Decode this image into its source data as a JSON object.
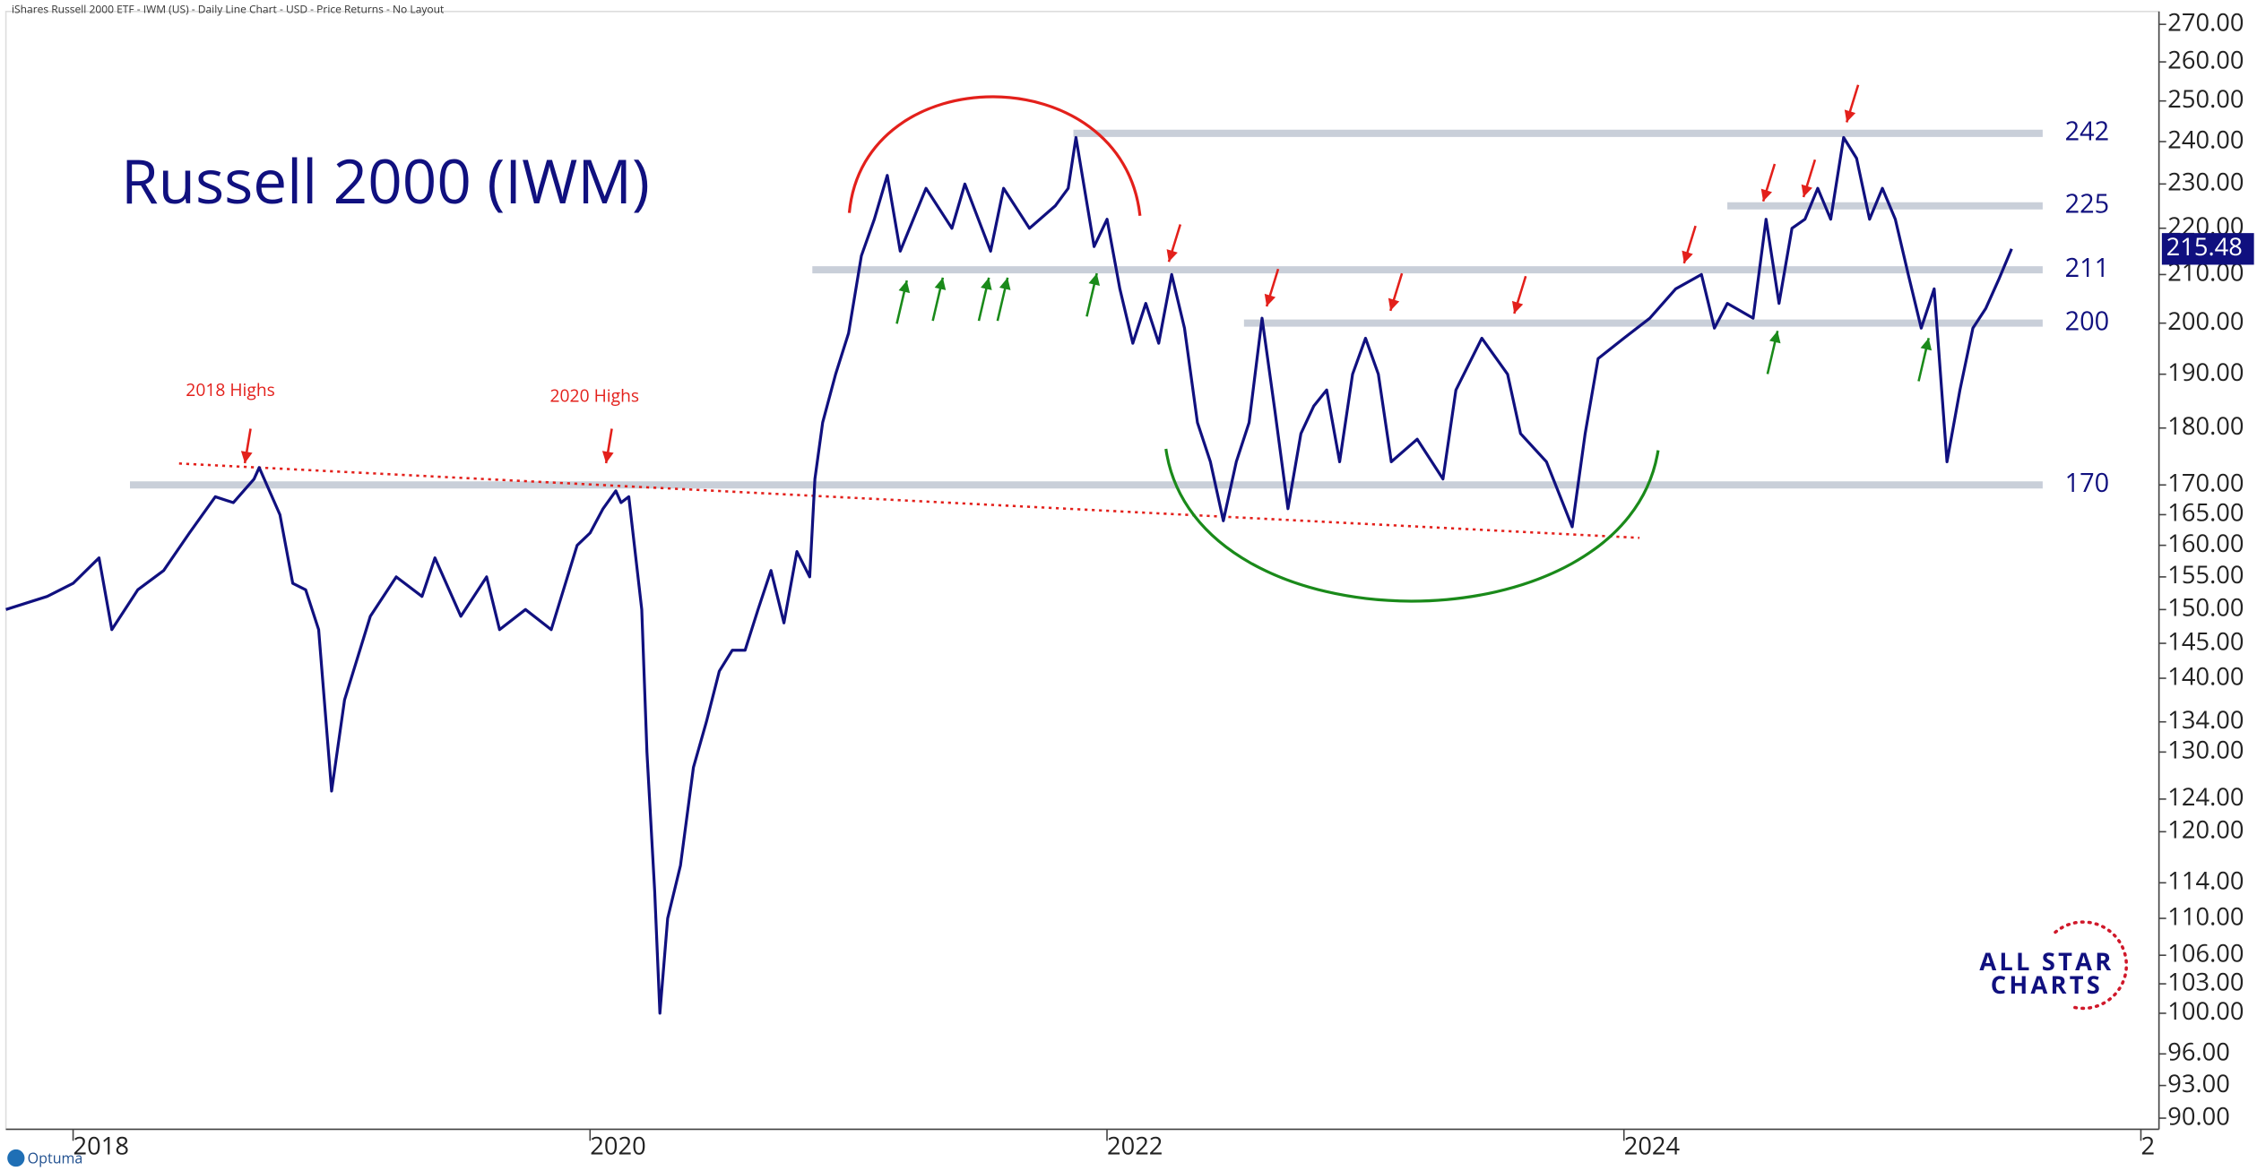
{
  "chart_data": {
    "type": "line",
    "header": "iShares Russell 2000 ETF - IWM (US) - Daily Line Chart - USD - Price Returns - No Layout",
    "title": "Russell 2000 (IWM)",
    "log_scale": true,
    "xlim": [
      2017.74,
      2026.07
    ],
    "xticks": [
      2018,
      2020,
      2022,
      2024,
      {
        "value": 2026,
        "label": "2"
      }
    ],
    "ylim": [
      89,
      273.5
    ],
    "yticks": [
      {
        "value": 270,
        "label": "270.00"
      },
      {
        "value": 260,
        "label": "260.00"
      },
      {
        "value": 250,
        "label": "250.00"
      },
      {
        "value": 240,
        "label": "240.00"
      },
      {
        "value": 230,
        "label": "230.00"
      },
      {
        "value": 220,
        "label": "220.00"
      },
      {
        "value": 210,
        "label": "210.00"
      },
      {
        "value": 200,
        "label": "200.00"
      },
      {
        "value": 190,
        "label": "190.00"
      },
      {
        "value": 180,
        "label": "180.00"
      },
      {
        "value": 170,
        "label": "170.00"
      },
      {
        "value": 165,
        "label": "165.00"
      },
      {
        "value": 160,
        "label": "160.00"
      },
      {
        "value": 155,
        "label": "155.00"
      },
      {
        "value": 150,
        "label": "150.00"
      },
      {
        "value": 145,
        "label": "145.00"
      },
      {
        "value": 140,
        "label": "140.00"
      },
      {
        "value": 134,
        "label": "134.00"
      },
      {
        "value": 130,
        "label": "130.00"
      },
      {
        "value": 124,
        "label": "124.00"
      },
      {
        "value": 120,
        "label": "120.00"
      },
      {
        "value": 114,
        "label": "114.00"
      },
      {
        "value": 110,
        "label": "110.00"
      },
      {
        "value": 106,
        "label": "106.00"
      },
      {
        "value": 103,
        "label": "103.00"
      },
      {
        "value": 100,
        "label": "100.00"
      },
      {
        "value": 96,
        "label": "96.00"
      },
      {
        "value": 93,
        "label": "93.00"
      },
      {
        "value": 90,
        "label": "90.00"
      }
    ],
    "series": [
      {
        "color": "#10107f",
        "x": [
          2017.74,
          2017.9,
          2018.0,
          2018.1,
          2018.15,
          2018.25,
          2018.35,
          2018.45,
          2018.55,
          2018.62,
          2018.7,
          2018.72,
          2018.8,
          2018.85,
          2018.9,
          2018.95,
          2019.0,
          2019.05,
          2019.15,
          2019.25,
          2019.35,
          2019.4,
          2019.5,
          2019.6,
          2019.65,
          2019.75,
          2019.85,
          2019.95,
          2020.0,
          2020.05,
          2020.1,
          2020.12,
          2020.15,
          2020.2,
          2020.22,
          2020.25,
          2020.27,
          2020.3,
          2020.35,
          2020.4,
          2020.45,
          2020.5,
          2020.55,
          2020.6,
          2020.65,
          2020.7,
          2020.75,
          2020.8,
          2020.85,
          2020.87,
          2020.9,
          2020.95,
          2021.0,
          2021.05,
          2021.1,
          2021.15,
          2021.2,
          2021.3,
          2021.4,
          2021.45,
          2021.55,
          2021.6,
          2021.7,
          2021.8,
          2021.85,
          2021.88,
          2021.95,
          2022.0,
          2022.05,
          2022.1,
          2022.15,
          2022.2,
          2022.25,
          2022.3,
          2022.35,
          2022.4,
          2022.45,
          2022.5,
          2022.55,
          2022.6,
          2022.65,
          2022.7,
          2022.75,
          2022.8,
          2022.85,
          2022.9,
          2022.95,
          2023.0,
          2023.05,
          2023.1,
          2023.2,
          2023.3,
          2023.35,
          2023.45,
          2023.55,
          2023.6,
          2023.7,
          2023.8,
          2023.85,
          2023.9,
          2024.0,
          2024.1,
          2024.2,
          2024.3,
          2024.35,
          2024.4,
          2024.5,
          2024.55,
          2024.6,
          2024.65,
          2024.7,
          2024.75,
          2024.8,
          2024.85,
          2024.9,
          2024.95,
          2025.0,
          2025.05,
          2025.1,
          2025.15,
          2025.2,
          2025.25,
          2025.3,
          2025.35,
          2025.4,
          2025.45,
          2025.5
        ],
        "values": [
          150,
          152,
          154,
          158,
          147,
          153,
          156,
          162,
          168,
          167,
          171,
          173,
          165,
          154,
          153,
          147,
          125,
          137,
          149,
          155,
          152,
          158,
          149,
          155,
          147,
          150,
          147,
          160,
          162,
          166,
          169,
          167,
          168,
          150,
          130,
          113,
          100,
          110,
          116,
          128,
          134,
          141,
          144,
          144,
          150,
          156,
          148,
          159,
          155,
          171,
          181,
          190,
          198,
          214,
          222,
          232,
          215,
          229,
          220,
          230,
          215,
          229,
          220,
          225,
          229,
          241,
          216,
          222,
          207,
          196,
          204,
          196,
          210,
          199,
          181,
          174,
          164,
          174,
          181,
          201,
          183,
          166,
          179,
          184,
          187,
          174,
          190,
          197,
          190,
          174,
          178,
          171,
          187,
          197,
          190,
          179,
          174,
          163,
          179,
          193,
          197,
          201,
          207,
          210,
          199,
          204,
          201,
          222,
          204,
          220,
          222,
          229,
          222,
          241,
          236,
          222,
          229,
          222,
          210,
          199,
          207,
          174,
          187,
          199,
          203,
          209,
          215.48
        ]
      }
    ],
    "levels": [
      {
        "value": 242,
        "x0": 2021.87
      },
      {
        "value": 225,
        "x0": 2024.4
      },
      {
        "value": 211,
        "x0": 2020.86
      },
      {
        "value": 200,
        "x0": 2022.53
      },
      {
        "value": 170,
        "x0": 2018.22
      }
    ],
    "levels_end": 2025.62,
    "trendline": {
      "x": [
        2018.41,
        2024.06
      ],
      "y": [
        173.7,
        161.2
      ]
    },
    "annotations": [
      "2018 Highs",
      "2020 Highs"
    ],
    "source": "Optuma",
    "logo": [
      "ALL STAR",
      "CHARTS"
    ]
  }
}
